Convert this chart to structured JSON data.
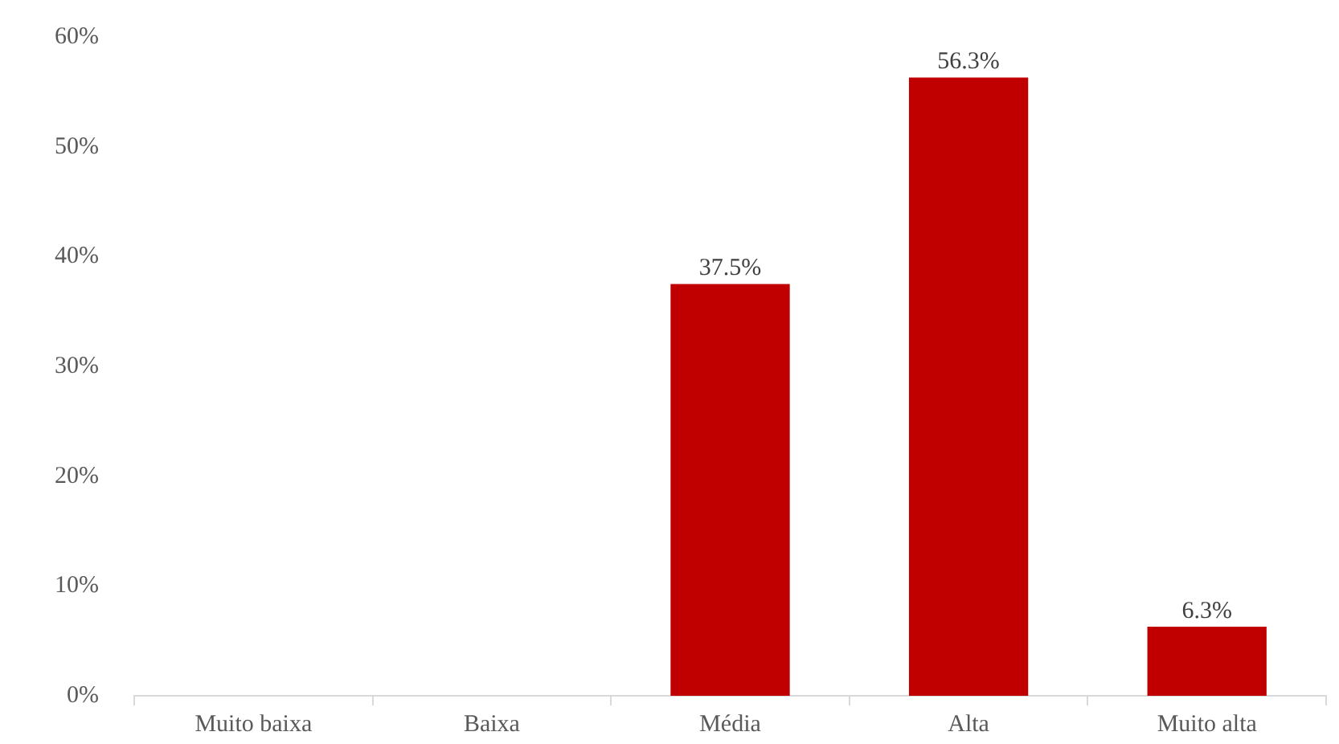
{
  "chart_data": {
    "type": "bar",
    "categories": [
      "Muito baixa",
      "Baixa",
      "Média",
      "Alta",
      "Muito alta"
    ],
    "values": [
      0,
      0,
      37.5,
      56.3,
      6.3
    ],
    "value_labels": [
      null,
      null,
      "37.5%",
      "56.3%",
      "6.3%"
    ],
    "color": "#c00000",
    "ylim": [
      0,
      60
    ],
    "yticks": [
      {
        "value": 0,
        "label": "0%"
      },
      {
        "value": 10,
        "label": "10%"
      },
      {
        "value": 20,
        "label": "20%"
      },
      {
        "value": 30,
        "label": "30%"
      },
      {
        "value": 40,
        "label": "40%"
      },
      {
        "value": 50,
        "label": "50%"
      },
      {
        "value": 60,
        "label": "60%"
      }
    ],
    "grid": false,
    "legend": false
  }
}
